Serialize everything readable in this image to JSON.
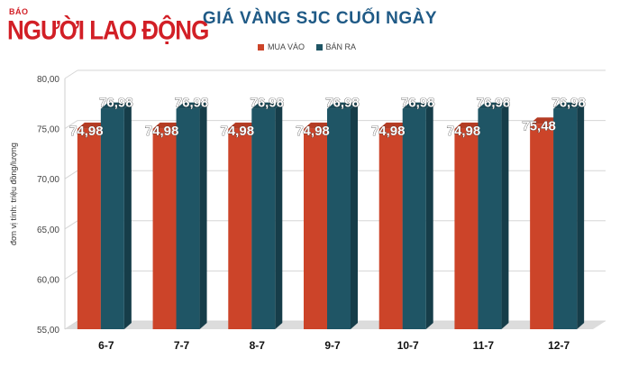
{
  "brand": {
    "prefix": "BÁO",
    "name": "NGƯỜI LAO ĐỘNG",
    "color": "#d21f26"
  },
  "colors": {
    "buy": "#cc4429",
    "sell": "#1f5565",
    "floor": "#dcdcdc",
    "title": "#1f5a86"
  },
  "chart_data": {
    "type": "bar",
    "title": "GIÁ VÀNG SJC CUỐI NGÀY",
    "ylabel": "đơn vị tính: triệu đồng/lượng",
    "categories": [
      "6-7",
      "7-7",
      "8-7",
      "9-7",
      "10-7",
      "11-7",
      "12-7"
    ],
    "series": [
      {
        "name": "MUA VÀO",
        "values": [
          74.98,
          74.98,
          74.98,
          74.98,
          74.98,
          74.98,
          75.48
        ],
        "labels": [
          "74,98",
          "74,98",
          "74,98",
          "74,98",
          "74,98",
          "74,98",
          "75,48"
        ]
      },
      {
        "name": "BÁN RA",
        "values": [
          76.98,
          76.98,
          76.98,
          76.98,
          76.98,
          76.98,
          76.98
        ],
        "labels": [
          "76,98",
          "76,98",
          "76,98",
          "76,98",
          "76,98",
          "76,98",
          "76,98"
        ]
      }
    ],
    "ylim": [
      55,
      80
    ],
    "yticks": [
      "55,00",
      "60,00",
      "65,00",
      "70,00",
      "75,00",
      "80,00"
    ],
    "ytick_values": [
      55,
      60,
      65,
      70,
      75,
      80
    ],
    "grid": true,
    "legend": "top-center"
  }
}
